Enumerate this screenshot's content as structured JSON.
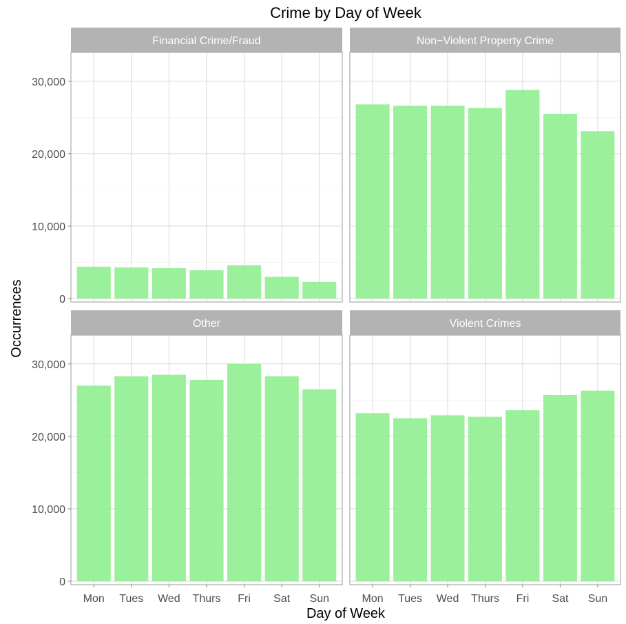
{
  "chart_data": {
    "type": "bar",
    "title": "Crime by Day of Week",
    "xlabel": "Day of Week",
    "ylabel": "Occurrences",
    "categories": [
      "Mon",
      "Tues",
      "Wed",
      "Thurs",
      "Fri",
      "Sat",
      "Sun"
    ],
    "ylim": [
      0,
      33500
    ],
    "yticks": [
      0,
      10000,
      20000,
      30000
    ],
    "ytick_labels": [
      "0",
      "10,000",
      "20,000",
      "30,000"
    ],
    "bar_color": "#90ee90",
    "facets": [
      {
        "name": "Financial Crime/Fraud",
        "values": [
          4400,
          4300,
          4200,
          3900,
          4600,
          3000,
          2300
        ]
      },
      {
        "name": "Non−Violent Property Crime",
        "values": [
          26800,
          26600,
          26600,
          26300,
          28800,
          25500,
          23100
        ]
      },
      {
        "name": "Other",
        "values": [
          27000,
          28300,
          28500,
          27800,
          30000,
          28300,
          26500
        ]
      },
      {
        "name": "Violent Crimes",
        "values": [
          23200,
          22500,
          22900,
          22700,
          23600,
          25700,
          26300
        ]
      }
    ]
  }
}
